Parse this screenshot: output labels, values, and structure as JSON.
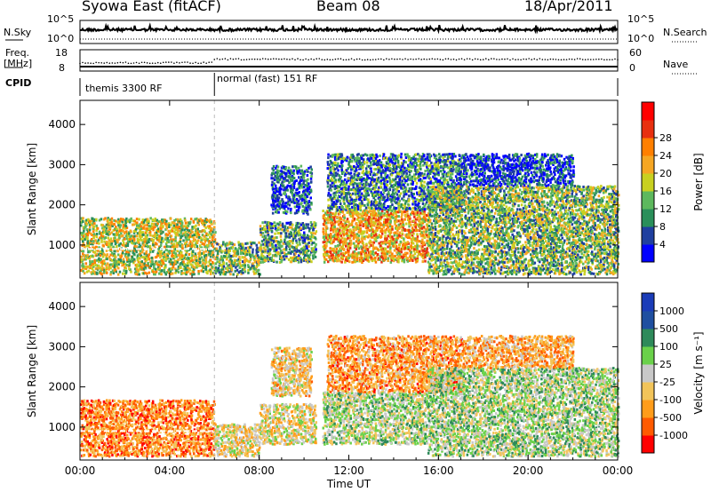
{
  "header": {
    "station": "Syowa East (fitACF)",
    "beam": "Beam 08",
    "date": "18/Apr/2011"
  },
  "top_panel": {
    "left_label": "N.Sky",
    "right_label": "N.Search",
    "left_ticks": [
      "10^5",
      "10^0"
    ],
    "right_ticks": [
      "10^5",
      "10^0"
    ]
  },
  "freq_panel": {
    "left_label_line1": "Freq.",
    "left_label_line2": "[MHz]",
    "right_label": "Nave",
    "left_ticks": [
      "18",
      "8"
    ],
    "right_ticks": [
      "60",
      "0"
    ]
  },
  "cpid": {
    "label": "CPID",
    "segments": [
      {
        "start_hour": 0,
        "end_hour": 6,
        "text": "themis 3300 RF"
      },
      {
        "start_hour": 6,
        "end_hour": 24,
        "text": "normal (fast) 151 RF"
      }
    ]
  },
  "colors": {
    "power": [
      "#0000ff",
      "#1f3f9f",
      "#2a8f5a",
      "#5db85d",
      "#c8d020",
      "#f5a623",
      "#ff7f00",
      "#e83010",
      "#ff0000"
    ],
    "velocity": [
      "#ff0000",
      "#ff5a00",
      "#ff9c1a",
      "#f2c45a",
      "#c8c8c8",
      "#6ad14a",
      "#2e8a5a",
      "#1f4fa0",
      "#1b3cb8"
    ]
  },
  "chart_data": [
    {
      "type": "heatmap",
      "title": "",
      "xlabel": "",
      "ylabel": "Slant Range [km]",
      "xlim": [
        0,
        24
      ],
      "ylim": [
        180,
        4600
      ],
      "x_ticks": [
        "00:00",
        "04:00",
        "08:00",
        "12:00",
        "16:00",
        "20:00",
        "00:00"
      ],
      "y_ticks": [
        1000,
        2000,
        3000,
        4000
      ],
      "colorbar": {
        "label": "Power [dB]",
        "ticks": [
          "4",
          "8",
          "12",
          "16",
          "20",
          "24",
          "28"
        ],
        "range": [
          0,
          30
        ]
      },
      "echo_regions": [
        {
          "t0": 0.0,
          "t1": 6.0,
          "r0": 300,
          "r1": 1700,
          "level": 0.55
        },
        {
          "t0": 6.0,
          "t1": 8.0,
          "r0": 300,
          "r1": 1100,
          "level": 0.45
        },
        {
          "t0": 8.0,
          "t1": 10.5,
          "r0": 600,
          "r1": 1600,
          "level": 0.4
        },
        {
          "t0": 8.5,
          "t1": 10.3,
          "r0": 1800,
          "r1": 3000,
          "level": 0.2
        },
        {
          "t0": 10.8,
          "t1": 15.5,
          "r0": 600,
          "r1": 1900,
          "level": 0.7
        },
        {
          "t0": 11.0,
          "t1": 17.0,
          "r0": 1900,
          "r1": 3300,
          "level": 0.3
        },
        {
          "t0": 15.5,
          "t1": 24.0,
          "r0": 300,
          "r1": 2500,
          "level": 0.45
        },
        {
          "t0": 17.0,
          "t1": 22.0,
          "r0": 2500,
          "r1": 3300,
          "level": 0.15
        }
      ]
    },
    {
      "type": "heatmap",
      "title": "",
      "xlabel": "Time UT",
      "ylabel": "Slant Range [km]",
      "xlim": [
        0,
        24
      ],
      "ylim": [
        180,
        4600
      ],
      "x_ticks": [
        "00:00",
        "04:00",
        "08:00",
        "12:00",
        "16:00",
        "20:00",
        "00:00"
      ],
      "y_ticks": [
        1000,
        2000,
        3000,
        4000
      ],
      "colorbar": {
        "label": "Velocity [m s⁻¹]",
        "ticks": [
          "1000",
          "500",
          "100",
          "25",
          "-25",
          "-100",
          "-500",
          "-1000"
        ],
        "range": [
          -1000,
          1000
        ]
      },
      "echo_regions": [
        {
          "t0": 0.0,
          "t1": 6.0,
          "r0": 300,
          "r1": 1700,
          "level": -0.45
        },
        {
          "t0": 6.0,
          "t1": 8.0,
          "r0": 300,
          "r1": 1100,
          "level": 0.0
        },
        {
          "t0": 8.0,
          "t1": 10.5,
          "r0": 600,
          "r1": 1600,
          "level": 0.0
        },
        {
          "t0": 8.5,
          "t1": 10.3,
          "r0": 1800,
          "r1": 3000,
          "level": -0.1
        },
        {
          "t0": 10.8,
          "t1": 15.5,
          "r0": 600,
          "r1": 1900,
          "level": 0.2
        },
        {
          "t0": 11.0,
          "t1": 17.0,
          "r0": 1900,
          "r1": 3300,
          "level": -0.35
        },
        {
          "t0": 15.5,
          "t1": 24.0,
          "r0": 300,
          "r1": 2500,
          "level": 0.25
        },
        {
          "t0": 17.0,
          "t1": 22.0,
          "r0": 2500,
          "r1": 3300,
          "level": -0.3
        }
      ]
    }
  ]
}
